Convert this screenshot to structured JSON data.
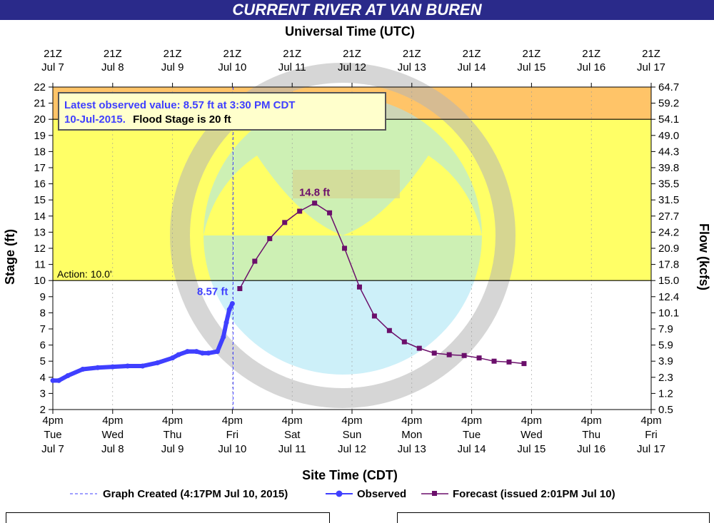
{
  "title": "CURRENT RIVER AT VAN BUREN",
  "chart_data": {
    "type": "line",
    "top_axis_label": "Universal Time (UTC)",
    "top_ticks": [
      [
        "21Z",
        "Jul 7"
      ],
      [
        "21Z",
        "Jul 8"
      ],
      [
        "21Z",
        "Jul 9"
      ],
      [
        "21Z",
        "Jul 10"
      ],
      [
        "21Z",
        "Jul 11"
      ],
      [
        "21Z",
        "Jul 12"
      ],
      [
        "21Z",
        "Jul 13"
      ],
      [
        "21Z",
        "Jul 14"
      ],
      [
        "21Z",
        "Jul 15"
      ],
      [
        "21Z",
        "Jul 16"
      ],
      [
        "21Z",
        "Jul 17"
      ]
    ],
    "bottom_ticks": [
      [
        "4pm",
        "Tue",
        "Jul 7"
      ],
      [
        "4pm",
        "Wed",
        "Jul 8"
      ],
      [
        "4pm",
        "Thu",
        "Jul 9"
      ],
      [
        "4pm",
        "Fri",
        "Jul 10"
      ],
      [
        "4pm",
        "Sat",
        "Jul 11"
      ],
      [
        "4pm",
        "Sun",
        "Jul 12"
      ],
      [
        "4pm",
        "Mon",
        "Jul 13"
      ],
      [
        "4pm",
        "Tue",
        "Jul 14"
      ],
      [
        "4pm",
        "Wed",
        "Jul 15"
      ],
      [
        "4pm",
        "Thu",
        "Jul 16"
      ],
      [
        "4pm",
        "Fri",
        "Jul 17"
      ]
    ],
    "xlabel": "Site Time (CDT)",
    "ylabel": "Stage (ft)",
    "ylabel_right": "Flow (kcfs)",
    "ylim": [
      2,
      22
    ],
    "y_ticks": [
      2,
      3,
      4,
      5,
      6,
      7,
      8,
      9,
      10,
      11,
      12,
      13,
      14,
      15,
      16,
      17,
      18,
      19,
      20,
      21,
      22
    ],
    "flow_ticks": [
      "0.5",
      "1.2",
      "2.3",
      "3.9",
      "5.9",
      "7.9",
      "10.1",
      "12.4",
      "15.0",
      "17.8",
      "20.9",
      "24.2",
      "27.7",
      "31.5",
      "35.5",
      "39.8",
      "44.3",
      "49.0",
      "54.1",
      "59.2",
      "64.7"
    ],
    "flood_stage": 20,
    "action_stage": 10,
    "action_label": "Action: 10.0'",
    "graph_created_day": 3.0125,
    "observed_label": "8.57 ft",
    "peak_label": "14.8 ft",
    "latest_box_line1": "Latest observed value: 8.57 ft at 3:30 PM CDT",
    "latest_box_line2a": "10-Jul-2015.",
    "latest_box_line2b": "Flood Stage is 20 ft",
    "observed_color": "#3f3fff",
    "forecast_color": "#6b0f6b",
    "series": [
      {
        "name": "Observed",
        "x": [
          0,
          0.1,
          0.25,
          0.5,
          0.75,
          1.0,
          1.25,
          1.5,
          1.75,
          2.0,
          2.1,
          2.25,
          2.4,
          2.5,
          2.6,
          2.75,
          2.85,
          2.9,
          2.95,
          3.0
        ],
        "y": [
          3.8,
          3.8,
          4.1,
          4.5,
          4.6,
          4.65,
          4.7,
          4.7,
          4.9,
          5.2,
          5.4,
          5.6,
          5.6,
          5.5,
          5.5,
          5.6,
          6.5,
          7.4,
          8.2,
          8.57
        ]
      },
      {
        "name": "Forecast (issued 2:01PM Jul 10)",
        "x": [
          3.125,
          3.375,
          3.625,
          3.875,
          4.125,
          4.375,
          4.625,
          4.875,
          5.125,
          5.375,
          5.625,
          5.875,
          6.125,
          6.375,
          6.625,
          6.875,
          7.125,
          7.375,
          7.625,
          7.875
        ],
        "y": [
          9.5,
          11.2,
          12.6,
          13.6,
          14.3,
          14.8,
          14.2,
          12.0,
          9.6,
          7.8,
          6.9,
          6.2,
          5.8,
          5.5,
          5.4,
          5.35,
          5.2,
          5.0,
          4.95,
          4.85
        ]
      }
    ],
    "legend": {
      "created": "Graph Created (4:17PM Jul 10, 2015)",
      "observed": "Observed",
      "forecast": "Forecast (issued 2:01PM Jul 10)"
    },
    "colors": {
      "flood": "#ffc468",
      "action": "#ffff66",
      "normal": "#ffffff"
    }
  }
}
